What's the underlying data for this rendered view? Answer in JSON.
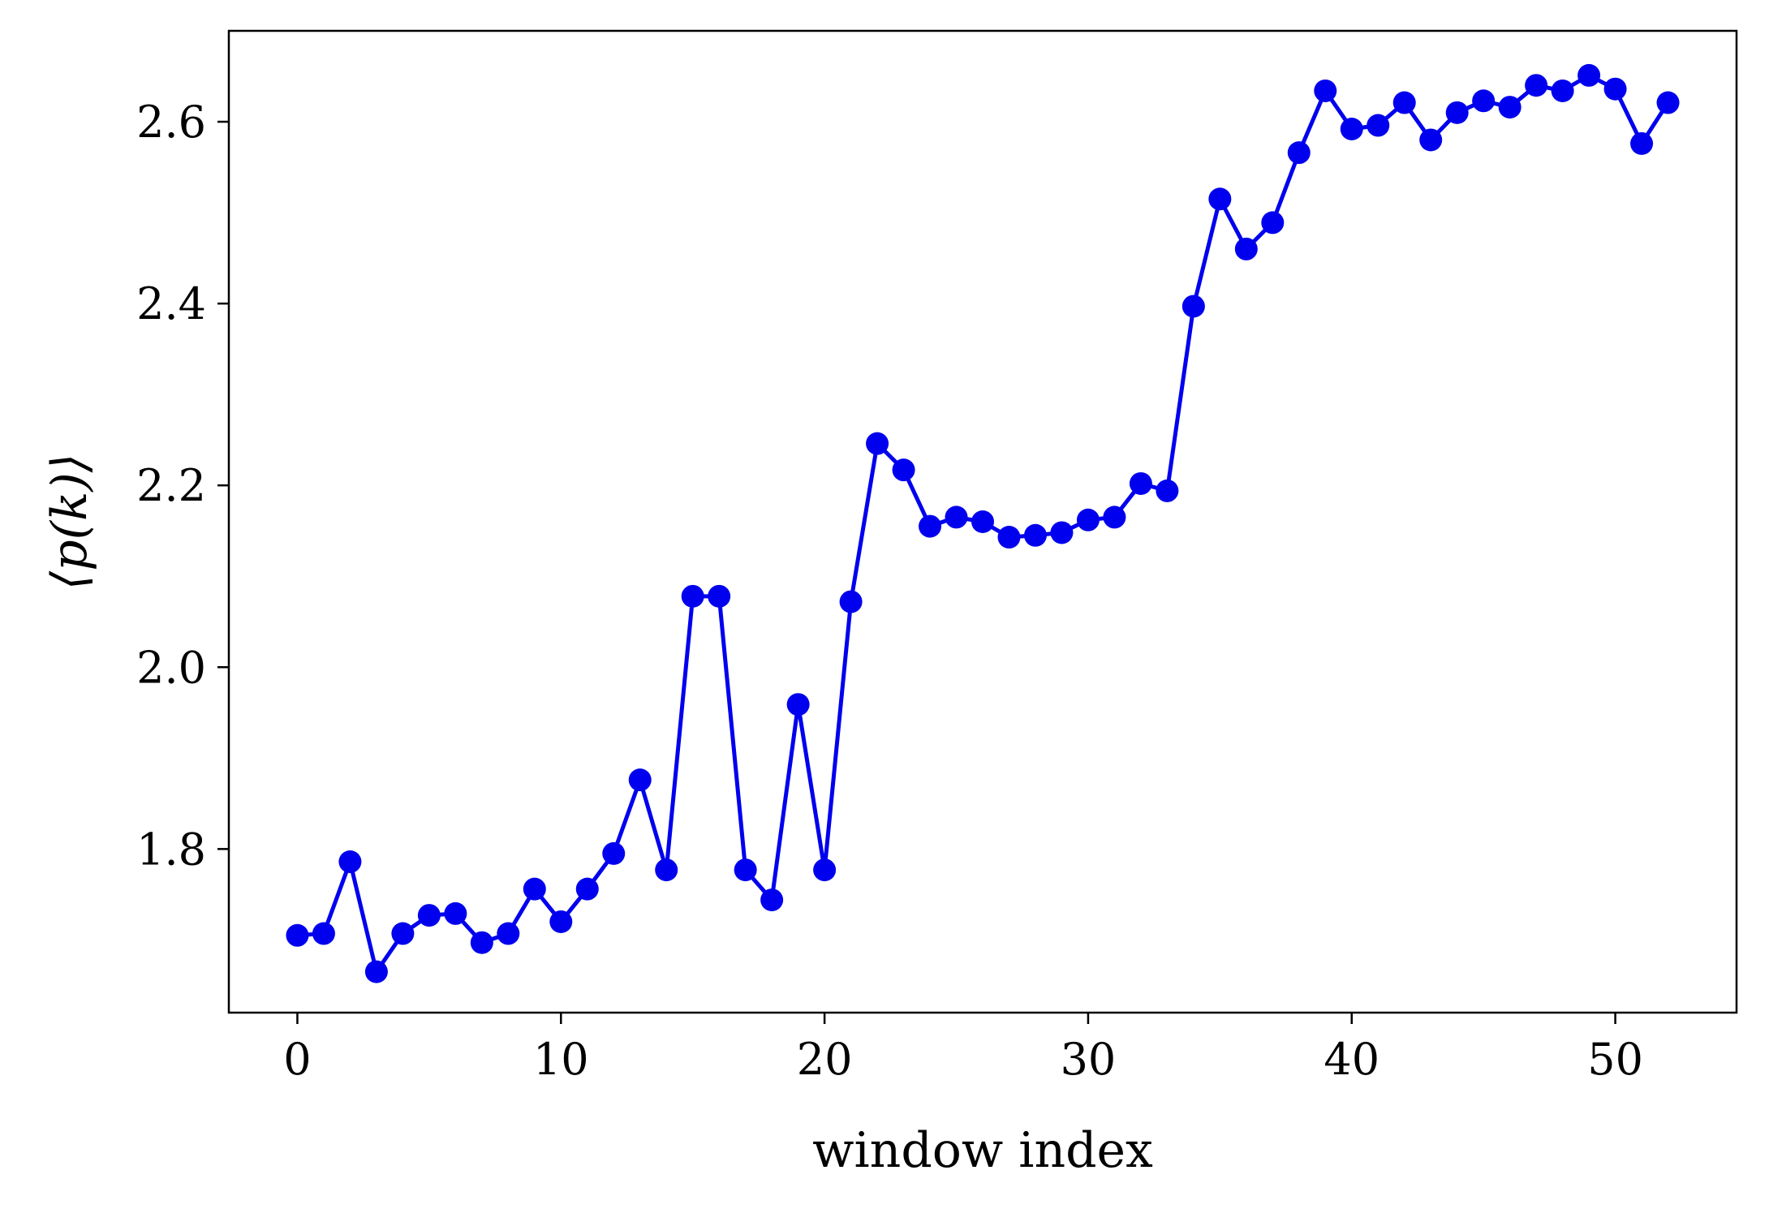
{
  "chart_data": {
    "type": "line",
    "title": "",
    "xlabel": "window index",
    "ylabel": "⟨p(k)⟩",
    "xlim": [
      -2.6,
      54.6
    ],
    "ylim": [
      1.62,
      2.7
    ],
    "xticks": [
      0,
      10,
      20,
      30,
      40,
      50
    ],
    "xtick_labels": [
      "0",
      "10",
      "20",
      "30",
      "40",
      "50"
    ],
    "yticks": [
      1.8,
      2.0,
      2.2,
      2.4,
      2.6
    ],
    "ytick_labels": [
      "1.8",
      "2.0",
      "2.2",
      "2.4",
      "2.6"
    ],
    "grid": false,
    "legend": "none",
    "series": [
      {
        "color": "#0000ee",
        "marker": "circle",
        "x": [
          0,
          1,
          2,
          3,
          4,
          5,
          6,
          7,
          8,
          9,
          10,
          11,
          12,
          13,
          14,
          15,
          16,
          17,
          18,
          19,
          20,
          21,
          22,
          23,
          24,
          25,
          26,
          27,
          28,
          29,
          30,
          31,
          32,
          33,
          34,
          35,
          36,
          37,
          38,
          39,
          40,
          41,
          42,
          43,
          44,
          45,
          46,
          47,
          48,
          49,
          50,
          51,
          52
        ],
        "y": [
          1.705,
          1.707,
          1.786,
          1.665,
          1.707,
          1.727,
          1.729,
          1.697,
          1.707,
          1.756,
          1.72,
          1.756,
          1.795,
          1.876,
          1.777,
          2.078,
          2.078,
          1.777,
          1.744,
          1.959,
          1.777,
          2.072,
          2.246,
          2.217,
          2.155,
          2.165,
          2.16,
          2.143,
          2.145,
          2.148,
          2.162,
          2.165,
          2.202,
          2.194,
          2.397,
          2.515,
          2.46,
          2.489,
          2.566,
          2.634,
          2.592,
          2.596,
          2.621,
          2.58,
          2.61,
          2.623,
          2.616,
          2.64,
          2.634,
          2.651,
          2.636,
          2.576,
          2.621
        ]
      }
    ]
  }
}
